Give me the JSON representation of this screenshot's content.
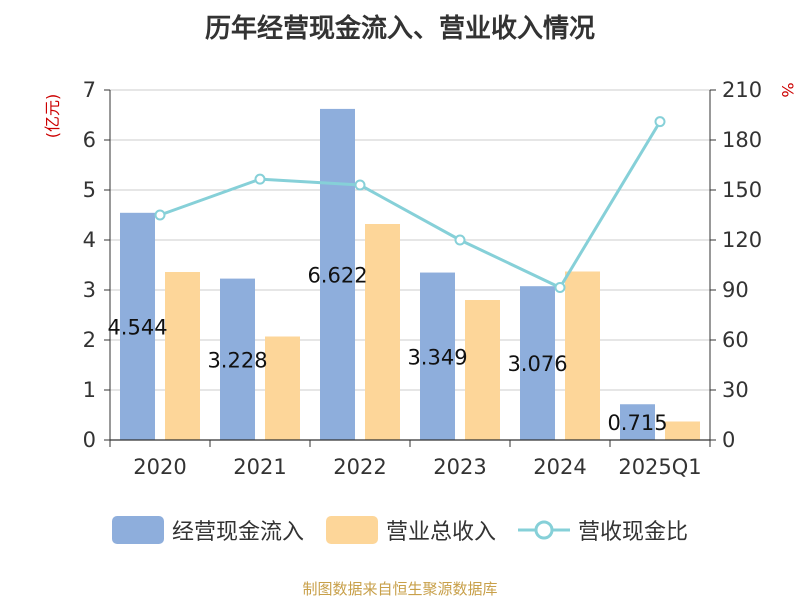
{
  "title": "历年经营现金流入、营业收入情况",
  "source": "制图数据来自恒生聚源数据库",
  "colors": {
    "cash_inflow": "#8eaedc",
    "revenue": "#fdd699",
    "ratio": "#86d0d8",
    "unit_label": "#cc0000",
    "axis_text": "#333333",
    "grid": "#cccccc"
  },
  "chart_data": {
    "type": "bar",
    "categories": [
      "2020",
      "2021",
      "2022",
      "2023",
      "2024",
      "2025Q1"
    ],
    "left_axis": {
      "label": "(亿元)",
      "min": 0,
      "max": 7,
      "ticks": [
        0,
        1,
        2,
        3,
        4,
        5,
        6,
        7
      ]
    },
    "right_axis": {
      "label": "%",
      "min": 0,
      "max": 210,
      "ticks": [
        0,
        30,
        60,
        90,
        120,
        150,
        180,
        210
      ]
    },
    "series": [
      {
        "name": "经营现金流入",
        "type": "bar",
        "axis": "left",
        "values": [
          4.544,
          3.228,
          6.622,
          3.349,
          3.076,
          0.715
        ],
        "labels": [
          "4.544",
          "3.228",
          "6.622",
          "3.349",
          "3.076",
          "0.715"
        ]
      },
      {
        "name": "营业总收入",
        "type": "bar",
        "axis": "left",
        "values": [
          3.36,
          2.07,
          4.32,
          2.8,
          3.37,
          0.37
        ]
      },
      {
        "name": "营收现金比",
        "type": "line",
        "axis": "right",
        "values": [
          135,
          156.5,
          153,
          120,
          91.5,
          191
        ]
      }
    ],
    "grid": true,
    "legend_position": "bottom"
  }
}
